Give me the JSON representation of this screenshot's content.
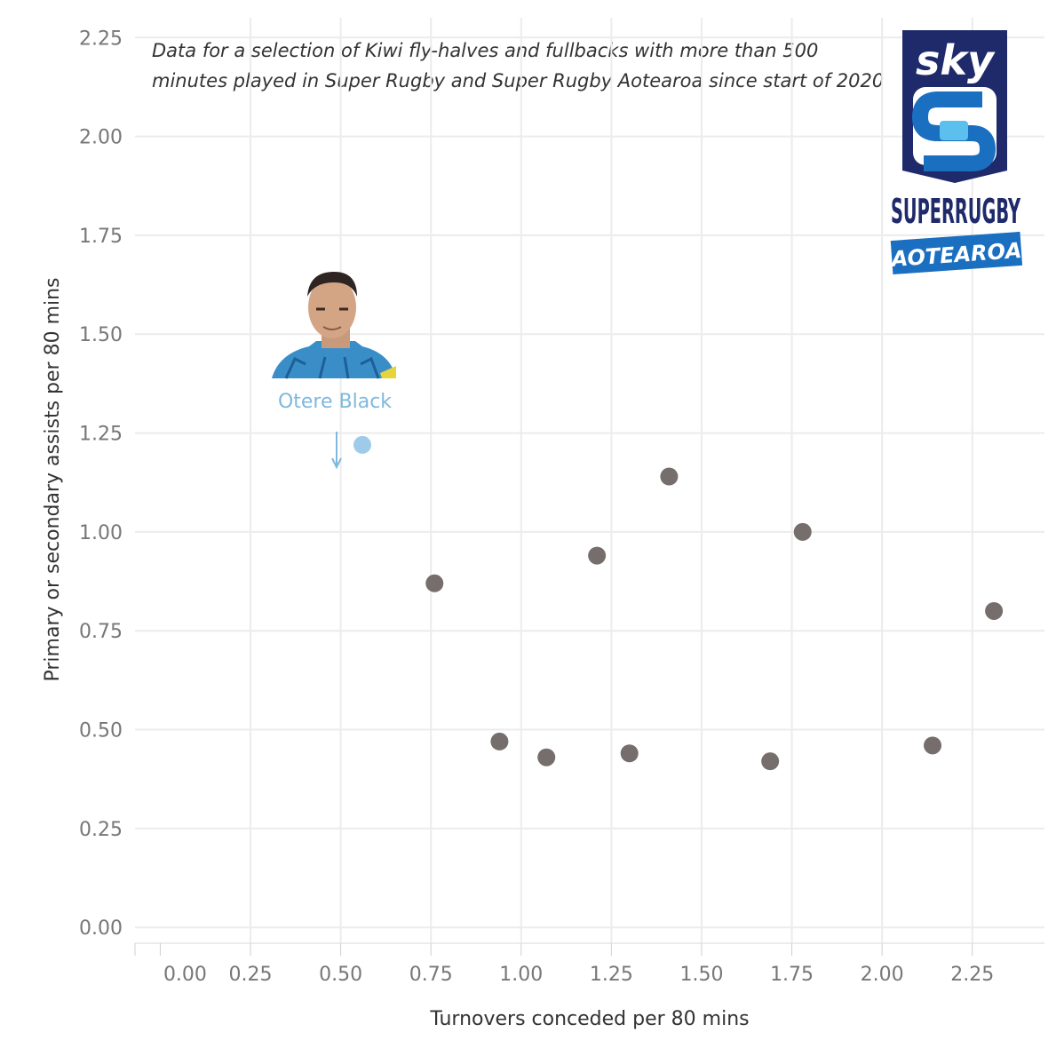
{
  "subtitle": {
    "line1": "Data for a selection of Kiwi  fly-halves and fullbacks with more than 500",
    "line2": "minutes played in Super Rugby and Super Rugby Aotearoa since start of 2020"
  },
  "logo": {
    "top": "sky",
    "middle": "SUPERRUGBY",
    "bottom": "AOTEAROA",
    "colors": {
      "navy": "#1f2a6b",
      "blue": "#1b6fc0",
      "light": "#5bc0ee"
    }
  },
  "annotation": {
    "label": "Otere Black",
    "photo": "player-headshot",
    "color": "#9fcbea"
  },
  "colors": {
    "highlight": "#9fcbea",
    "points": "#766e6c",
    "grid": "#ececec"
  },
  "chart_data": {
    "type": "scatter",
    "title": "",
    "xlabel": "Turnovers conceded per 80 mins",
    "ylabel": "Primary or secondary assists per 80 mins",
    "xlim": [
      -0.07,
      2.45
    ],
    "ylim": [
      -0.04,
      2.3
    ],
    "x_ticks": [
      "0.00",
      "0.25",
      "0.50",
      "0.75",
      "1.00",
      "1.25",
      "1.50",
      "1.75",
      "2.00",
      "2.25"
    ],
    "y_ticks": [
      "0.00",
      "0.25",
      "0.50",
      "0.75",
      "1.00",
      "1.25",
      "1.50",
      "1.75",
      "2.00",
      "2.25"
    ],
    "grid": true,
    "points": [
      {
        "x": 0.56,
        "y": 1.22,
        "highlight": true,
        "label": "Otere Black"
      },
      {
        "x": 0.76,
        "y": 0.87
      },
      {
        "x": 0.94,
        "y": 0.47
      },
      {
        "x": 1.07,
        "y": 0.43
      },
      {
        "x": 1.21,
        "y": 0.94
      },
      {
        "x": 1.3,
        "y": 0.44
      },
      {
        "x": 1.41,
        "y": 1.14
      },
      {
        "x": 1.69,
        "y": 0.42
      },
      {
        "x": 1.78,
        "y": 1.0
      },
      {
        "x": 2.14,
        "y": 0.46
      },
      {
        "x": 2.31,
        "y": 0.8
      }
    ]
  }
}
